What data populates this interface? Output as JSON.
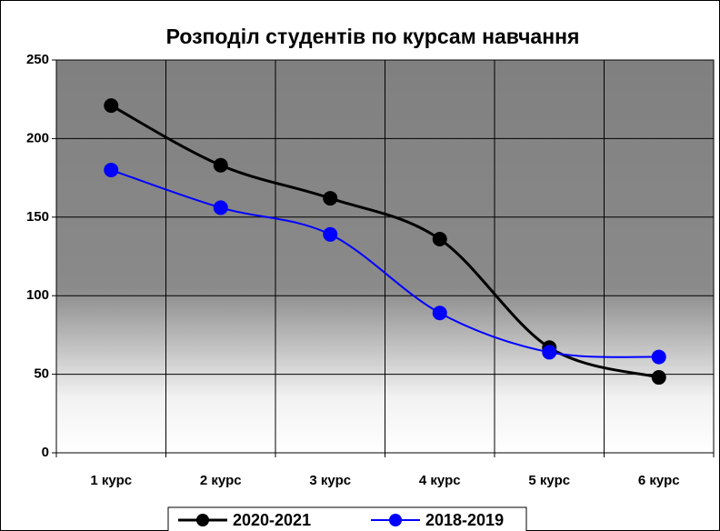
{
  "chart_data": {
    "type": "line",
    "title": "Розподіл студентів по курсам навчання",
    "categories": [
      "1 курс",
      "2 курс",
      "3 курс",
      "4 курс",
      "5 курс",
      "6 курс"
    ],
    "series": [
      {
        "name": "2020-2021",
        "color": "#000000",
        "values": [
          221,
          183,
          162,
          136,
          67,
          48
        ]
      },
      {
        "name": "2018-2019",
        "color": "#0000ff",
        "values": [
          180,
          156,
          139,
          89,
          64,
          61
        ]
      }
    ],
    "ylim": [
      0,
      250
    ],
    "yticks": [
      0,
      50,
      100,
      150,
      200,
      250
    ],
    "grid": true,
    "smooth": true,
    "legend": "bottom"
  }
}
